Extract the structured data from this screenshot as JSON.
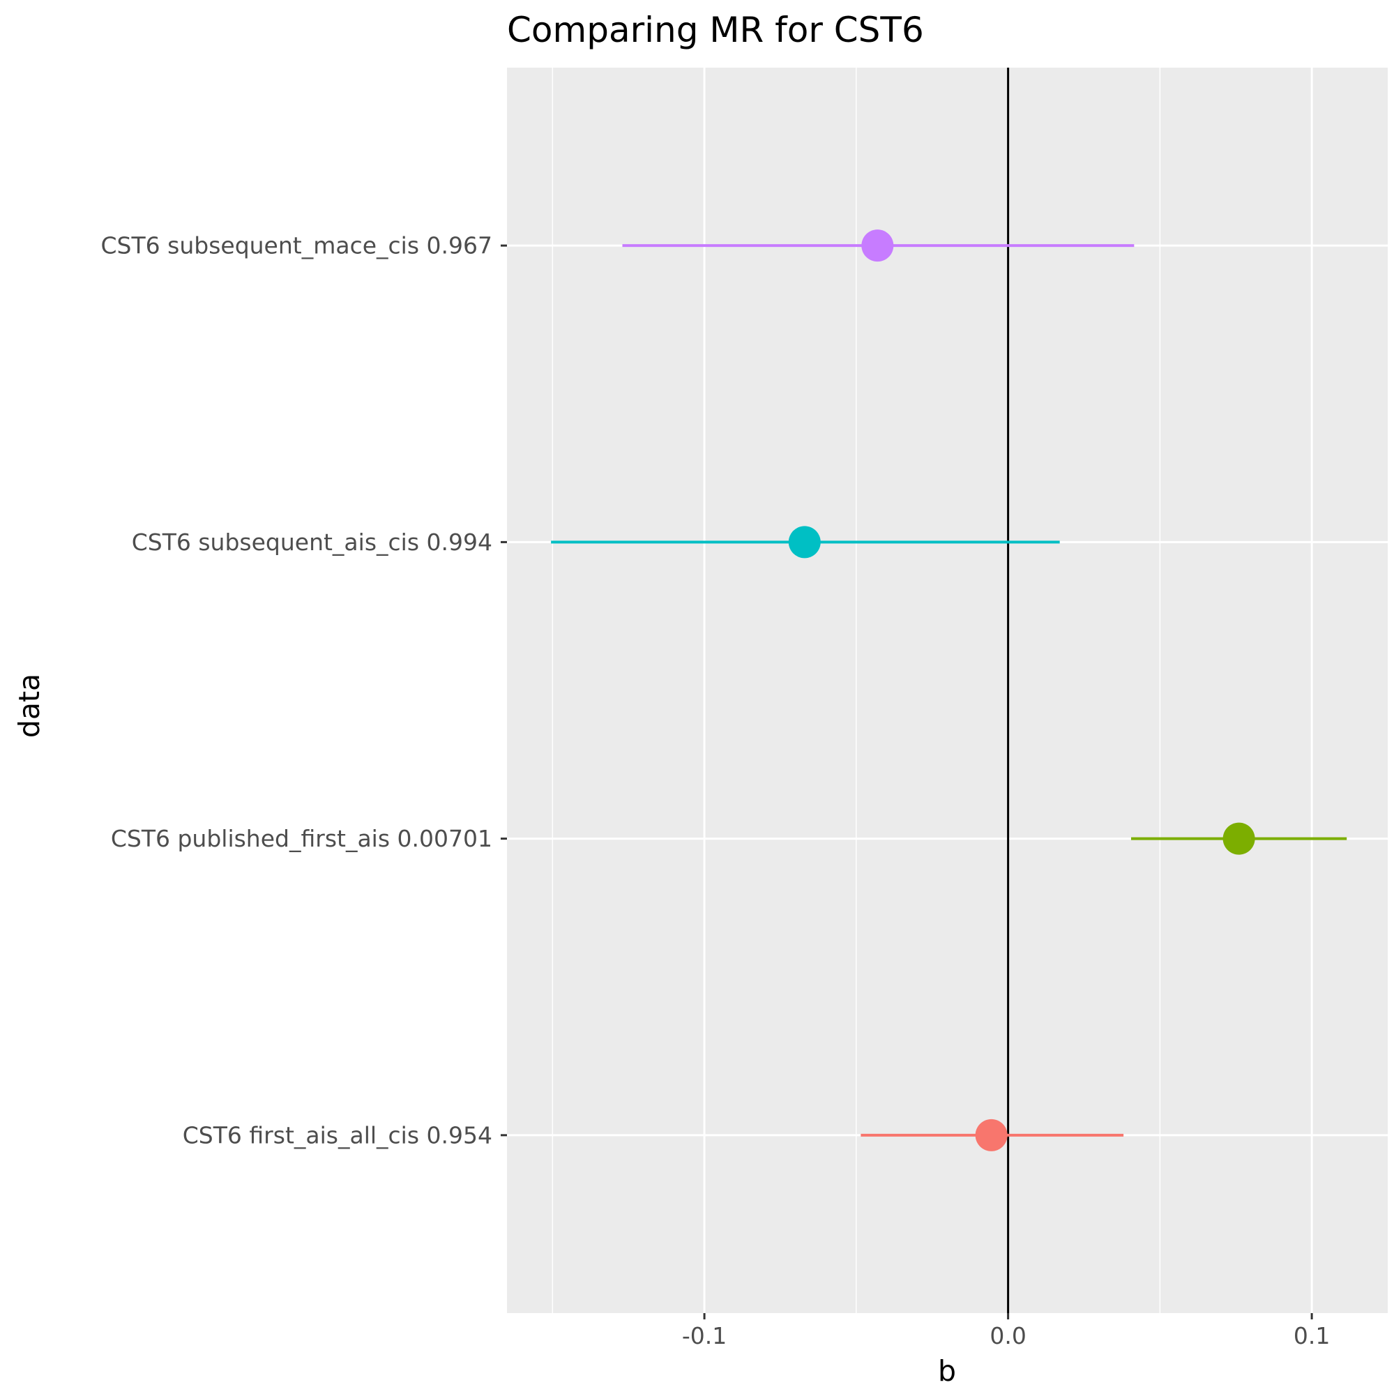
{
  "chart_data": {
    "type": "scatter",
    "title": "Comparing MR for CST6",
    "xlabel": "b",
    "ylabel": "data",
    "xlim": [
      -0.165,
      0.125
    ],
    "xticks": [
      -0.1,
      0.0,
      0.1
    ],
    "xtick_labels": [
      "-0.1",
      "0.0",
      "0.1"
    ],
    "grid": true,
    "reference_line_x": 0,
    "legend": "none",
    "categories": [
      "CST6 first_ais_all_cis 0.954",
      "CST6 published_first_ais 0.00701",
      "CST6 subsequent_ais_cis 0.994",
      "CST6 subsequent_mace_cis 0.967"
    ],
    "points": [
      {
        "label": "CST6 first_ais_all_cis 0.954",
        "b": -0.0055,
        "lo": -0.0485,
        "hi": 0.038,
        "color": "#F8766D"
      },
      {
        "label": "CST6 published_first_ais 0.00701",
        "b": 0.076,
        "lo": 0.0405,
        "hi": 0.1115,
        "color": "#7CAE00"
      },
      {
        "label": "CST6 subsequent_ais_cis 0.994",
        "b": -0.067,
        "lo": -0.1505,
        "hi": 0.017,
        "color": "#00BFC4"
      },
      {
        "label": "CST6 subsequent_mace_cis 0.967",
        "b": -0.043,
        "lo": -0.127,
        "hi": 0.0415,
        "color": "#C77CFF"
      }
    ]
  }
}
